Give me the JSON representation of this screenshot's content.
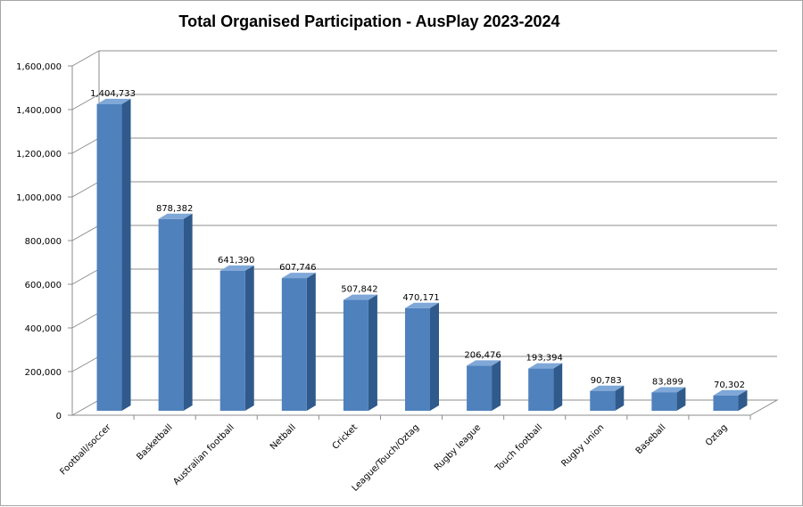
{
  "chart_data": {
    "type": "bar",
    "title": "Total Organised Participation - AusPlay 2023-2024",
    "xlabel": "",
    "ylabel": "",
    "categories": [
      "Football/soccer",
      "Basketball",
      "Australian football",
      "Netball",
      "Cricket",
      "League/Touch/Oztag",
      "Rugby league",
      "Touch football",
      "Rugby union",
      "Baseball",
      "Oztag"
    ],
    "values": [
      1404733,
      878382,
      641390,
      607746,
      507842,
      470171,
      206476,
      193394,
      90783,
      83899,
      70302
    ],
    "value_labels": [
      "1,404,733",
      "878,382",
      "641,390",
      "607,746",
      "507,842",
      "470,171",
      "206,476",
      "193,394",
      "90,783",
      "83,899",
      "70,302"
    ],
    "ylim": [
      0,
      1600000
    ],
    "yticks": [
      0,
      200000,
      400000,
      600000,
      800000,
      1000000,
      1200000,
      1400000,
      1600000
    ],
    "ytick_labels": [
      "0",
      "200,000",
      "400,000",
      "600,000",
      "800,000",
      "1,000,000",
      "1,200,000",
      "1,400,000",
      "1,600,000"
    ],
    "grid": true,
    "legend": "none",
    "style": "3d-column",
    "colors": {
      "bar_front": "#4F81BD",
      "bar_side": "#2F5A8B",
      "bar_top": "#7FA7D8",
      "grid": "#8c8c8c"
    }
  }
}
